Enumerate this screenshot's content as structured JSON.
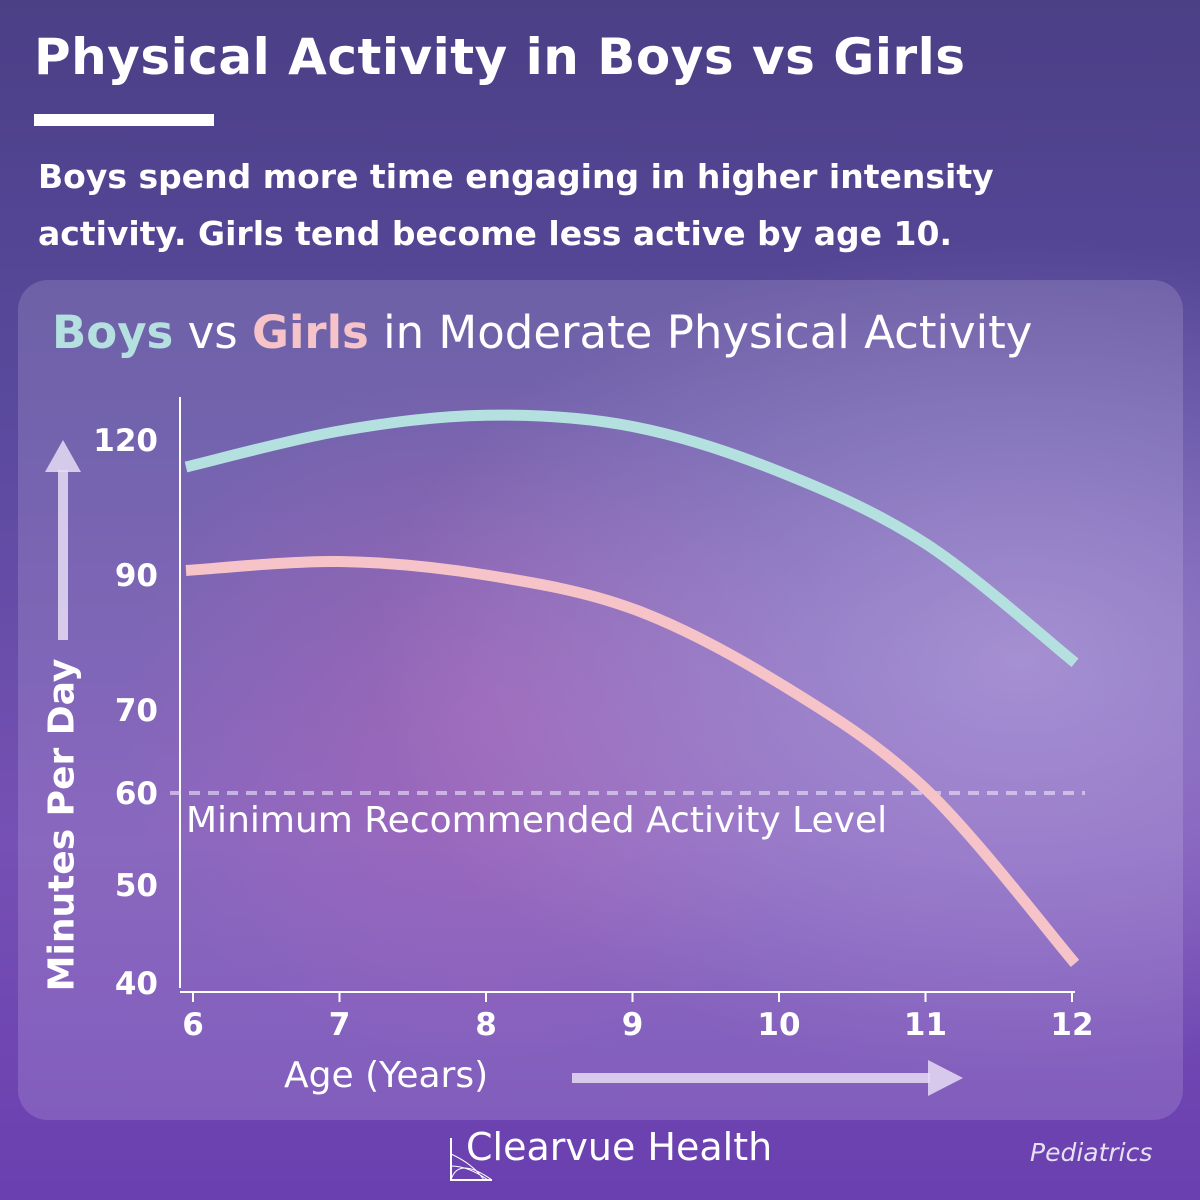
{
  "header": {
    "title": "Physical Activity in Boys vs Girls",
    "subtitle": "Boys spend more time engaging in higher intensity activity. Girls tend become less active by age 10."
  },
  "chart_data": {
    "type": "line",
    "title_parts": {
      "boys": "Boys",
      "vs": " vs ",
      "girls": "Girls",
      "rest": " in Moderate Physical Activity"
    },
    "xlabel": "Age (Years)",
    "ylabel": "Minutes Per Day",
    "x": [
      6,
      7,
      8,
      9,
      10,
      11,
      12
    ],
    "x_ticks": [
      "6",
      "7",
      "8",
      "9",
      "10",
      "11",
      "12"
    ],
    "y_ticks": [
      40,
      50,
      60,
      70,
      90,
      120
    ],
    "y_tick_labels": [
      "40",
      "50",
      "60",
      "70",
      "90",
      "120"
    ],
    "y_scale": "non-uniform (ticks 40,50,60,70,90,120)",
    "series": [
      {
        "name": "Boys",
        "color": "#b5e0e0",
        "values": [
          114,
          122,
          125.5,
          123,
          113,
          97,
          77
        ]
      },
      {
        "name": "Girls",
        "color": "#f6c3c8",
        "values": [
          91,
          93,
          90,
          85,
          74,
          60.5,
          42
        ]
      }
    ],
    "reference_line": {
      "value": 60,
      "label": "Minimum Recommended Activity Level",
      "style": "dashed"
    },
    "grid": false,
    "legend": "in title"
  },
  "footer": {
    "brand": "Clearvue Health",
    "department": "Pediatrics"
  },
  "colors": {
    "background": "#5a4a9e",
    "boys": "#b5e0e0",
    "girls": "#f6c3c8"
  }
}
